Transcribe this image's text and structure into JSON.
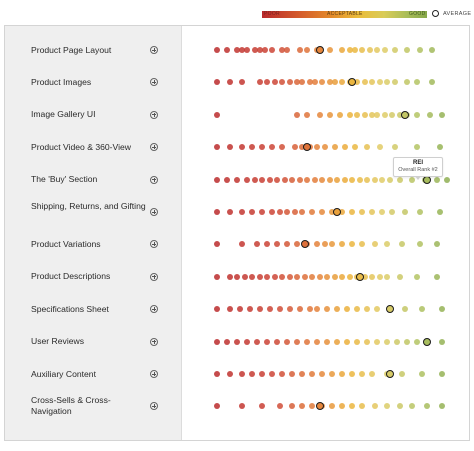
{
  "legend": {
    "poor_label": "POOR",
    "acceptable_label": "ACCEPTABLE",
    "good_label": "GOOD",
    "average_label": "AVERAGE"
  },
  "colors": {
    "poor": "#c0392b",
    "acceptable": "#e8a631",
    "good": "#86a84a",
    "panel_bg": "#efefef"
  },
  "icons": {
    "expand": "plus-circle-icon",
    "average": "ring-icon",
    "cursor": "hand-pointer-icon"
  },
  "tooltip": {
    "title": "REI",
    "subtitle": "Overall Rank #2"
  },
  "rows": [
    {
      "label": "Product Page Layout",
      "dots": [
        0.02,
        0.06,
        0.1,
        0.12,
        0.14,
        0.17,
        0.19,
        0.21,
        0.24,
        0.28,
        0.3,
        0.35,
        0.38,
        0.42,
        0.47,
        0.52,
        0.55,
        0.57,
        0.6,
        0.63,
        0.66,
        0.69,
        0.73,
        0.78,
        0.83,
        0.88
      ],
      "avg": 0.43
    },
    {
      "label": "Product Images",
      "dots": [
        0.02,
        0.07,
        0.12,
        0.19,
        0.22,
        0.25,
        0.28,
        0.31,
        0.34,
        0.36,
        0.39,
        0.41,
        0.44,
        0.47,
        0.49,
        0.52,
        0.55,
        0.58,
        0.61,
        0.64,
        0.67,
        0.7,
        0.73,
        0.78,
        0.82,
        0.88
      ],
      "avg": 0.56
    },
    {
      "label": "Image Gallery UI",
      "dots": [
        0.02,
        0.34,
        0.38,
        0.43,
        0.47,
        0.51,
        0.55,
        0.58,
        0.61,
        0.64,
        0.66,
        0.69,
        0.72,
        0.75,
        0.78,
        0.82,
        0.87,
        0.92
      ],
      "avg": 0.77
    },
    {
      "label": "Product Video & 360-View",
      "dots": [
        0.02,
        0.07,
        0.12,
        0.16,
        0.2,
        0.24,
        0.28,
        0.33,
        0.36,
        0.39,
        0.42,
        0.45,
        0.49,
        0.53,
        0.57,
        0.62,
        0.67,
        0.73,
        0.82,
        0.91
      ],
      "avg": 0.38
    },
    {
      "label": "The 'Buy' Section",
      "dots": [
        0.02,
        0.06,
        0.1,
        0.14,
        0.17,
        0.2,
        0.23,
        0.26,
        0.29,
        0.32,
        0.35,
        0.38,
        0.41,
        0.44,
        0.47,
        0.5,
        0.53,
        0.56,
        0.59,
        0.62,
        0.65,
        0.68,
        0.71,
        0.75,
        0.8,
        0.85,
        0.9,
        0.94
      ],
      "avg": 0.86
    },
    {
      "label": "Shipping, Returns, and Gifting",
      "dots": [
        0.02,
        0.07,
        0.12,
        0.16,
        0.2,
        0.24,
        0.27,
        0.3,
        0.33,
        0.36,
        0.4,
        0.44,
        0.48,
        0.52,
        0.56,
        0.6,
        0.64,
        0.68,
        0.72,
        0.77,
        0.83,
        0.91
      ],
      "avg": 0.5
    },
    {
      "label": "Product Variations",
      "dots": [
        0.02,
        0.12,
        0.18,
        0.22,
        0.26,
        0.3,
        0.34,
        0.38,
        0.42,
        0.45,
        0.48,
        0.52,
        0.56,
        0.6,
        0.65,
        0.7,
        0.76,
        0.83,
        0.9
      ],
      "avg": 0.37
    },
    {
      "label": "Product Descriptions",
      "dots": [
        0.02,
        0.07,
        0.1,
        0.13,
        0.16,
        0.19,
        0.22,
        0.25,
        0.28,
        0.31,
        0.34,
        0.37,
        0.4,
        0.43,
        0.46,
        0.49,
        0.52,
        0.55,
        0.58,
        0.61,
        0.64,
        0.67,
        0.7,
        0.75,
        0.82,
        0.9
      ],
      "avg": 0.59
    },
    {
      "label": "Specifications Sheet",
      "dots": [
        0.02,
        0.07,
        0.11,
        0.15,
        0.19,
        0.23,
        0.27,
        0.31,
        0.35,
        0.39,
        0.42,
        0.46,
        0.5,
        0.54,
        0.58,
        0.62,
        0.66,
        0.71,
        0.77,
        0.84,
        0.92
      ],
      "avg": 0.71
    },
    {
      "label": "User Reviews",
      "dots": [
        0.02,
        0.06,
        0.1,
        0.14,
        0.18,
        0.22,
        0.26,
        0.3,
        0.34,
        0.38,
        0.42,
        0.46,
        0.5,
        0.54,
        0.58,
        0.62,
        0.66,
        0.7,
        0.74,
        0.78,
        0.82,
        0.86,
        0.92
      ],
      "avg": 0.86
    },
    {
      "label": "Auxiliary Content",
      "dots": [
        0.02,
        0.07,
        0.12,
        0.16,
        0.2,
        0.24,
        0.28,
        0.32,
        0.36,
        0.4,
        0.44,
        0.48,
        0.52,
        0.56,
        0.6,
        0.64,
        0.7,
        0.76,
        0.84,
        0.92
      ],
      "avg": 0.71
    },
    {
      "label": "Cross-Sells & Cross-Navigation",
      "dots": [
        0.02,
        0.12,
        0.2,
        0.27,
        0.32,
        0.36,
        0.4,
        0.44,
        0.48,
        0.52,
        0.56,
        0.6,
        0.65,
        0.7,
        0.75,
        0.8,
        0.86,
        0.92
      ],
      "avg": 0.43
    }
  ]
}
